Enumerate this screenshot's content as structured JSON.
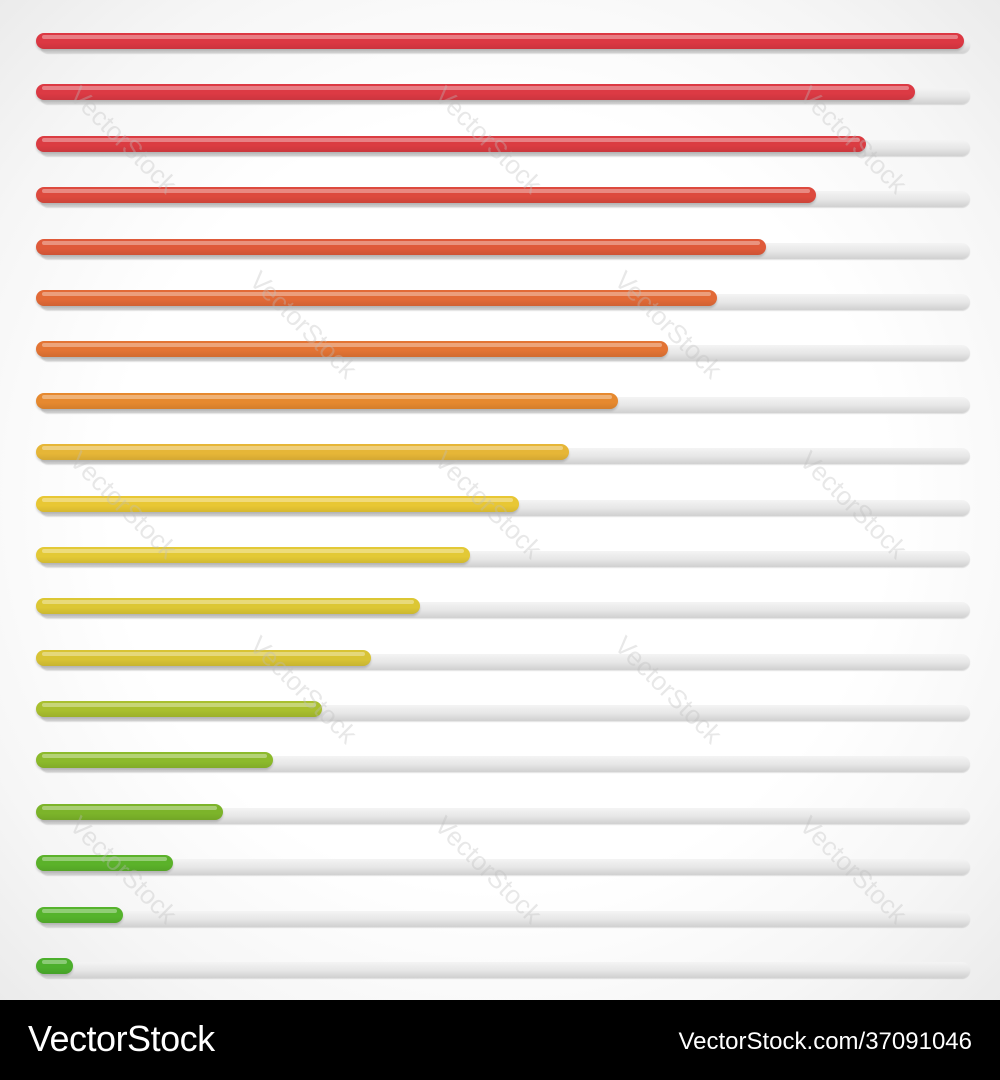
{
  "watermark_text": "VectorStock",
  "footer": {
    "brand": "VectorStock",
    "reference": "VectorStock.com/37091046"
  },
  "colors": {
    "track": "#e2e2e2",
    "footer_bg": "#000000"
  },
  "progress_bars": [
    {
      "level": 1.0,
      "color": "#dc3843"
    },
    {
      "level": 0.947,
      "color": "#dc3a44"
    },
    {
      "level": 0.894,
      "color": "#db3c42"
    },
    {
      "level": 0.84,
      "color": "#dd4a3e"
    },
    {
      "level": 0.787,
      "color": "#df5a3a"
    },
    {
      "level": 0.734,
      "color": "#e26a37"
    },
    {
      "level": 0.681,
      "color": "#e37434"
    },
    {
      "level": 0.627,
      "color": "#e6892f"
    },
    {
      "level": 0.574,
      "color": "#e6b637"
    },
    {
      "level": 0.521,
      "color": "#e8c734"
    },
    {
      "level": 0.468,
      "color": "#e3c936"
    },
    {
      "level": 0.414,
      "color": "#dcc734"
    },
    {
      "level": 0.361,
      "color": "#d8c335"
    },
    {
      "level": 0.308,
      "color": "#a9bf2e"
    },
    {
      "level": 0.255,
      "color": "#8cba2b"
    },
    {
      "level": 0.201,
      "color": "#7cb42a"
    },
    {
      "level": 0.148,
      "color": "#5bb22a"
    },
    {
      "level": 0.094,
      "color": "#55b32c"
    },
    {
      "level": 0.04,
      "color": "#4caf2c"
    }
  ]
}
